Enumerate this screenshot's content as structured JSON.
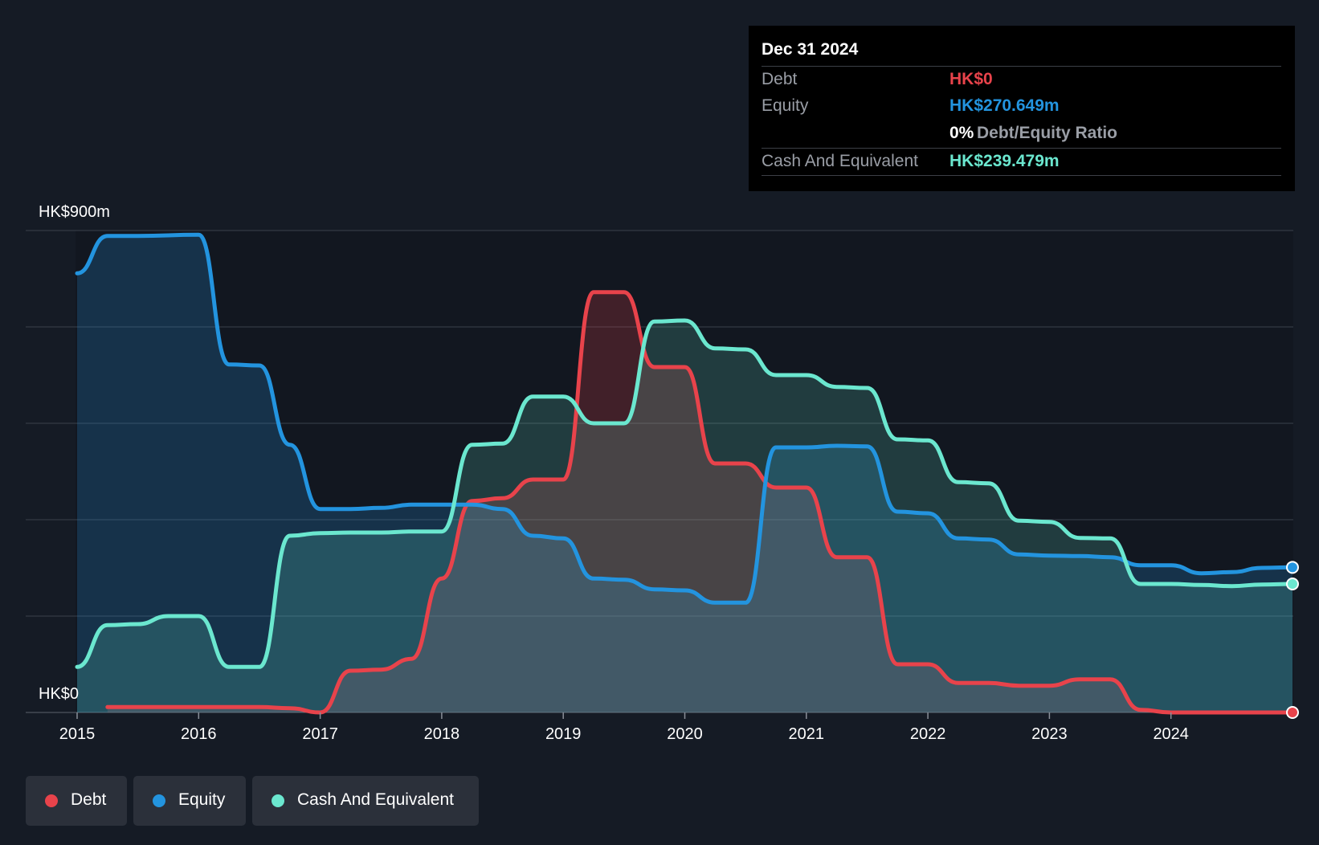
{
  "tooltip": {
    "date": "Dec 31 2024",
    "debt_label": "Debt",
    "debt_value": "HK$0",
    "equity_label": "Equity",
    "equity_value": "HK$270.649m",
    "ratio_value": "0%",
    "ratio_label": "Debt/Equity Ratio",
    "cash_label": "Cash And Equivalent",
    "cash_value": "HK$239.479m"
  },
  "legend": {
    "debt": "Debt",
    "equity": "Equity",
    "cash": "Cash And Equivalent"
  },
  "colors": {
    "background": "#151b25",
    "debt": "#e8434b",
    "equity": "#2394df",
    "cash": "#6be7cf",
    "grid": "#3a404b",
    "text": "#ffffff"
  },
  "chart_data": {
    "type": "area",
    "ylim": [
      0,
      900
    ],
    "y_unit": "HK$m",
    "y_tick_labels": {
      "top": "HK$900m",
      "bottom": "HK$0"
    },
    "gridlines": [
      0,
      180,
      360,
      540,
      720,
      900
    ],
    "x_range": [
      2015,
      2025
    ],
    "x_ticks": [
      "2015",
      "2016",
      "2017",
      "2018",
      "2019",
      "2020",
      "2021",
      "2022",
      "2023",
      "2024"
    ],
    "series": [
      {
        "name": "Debt",
        "x": [
          2015.25,
          2015.5,
          2016.0,
          2016.5,
          2016.75,
          2017.0,
          2017.25,
          2017.5,
          2017.75,
          2018.0,
          2018.25,
          2018.5,
          2018.75,
          2019.0,
          2019.25,
          2019.5,
          2019.75,
          2020.0,
          2020.25,
          2020.5,
          2020.75,
          2021.0,
          2021.25,
          2021.5,
          2021.75,
          2022.0,
          2022.25,
          2022.5,
          2022.75,
          2023.0,
          2023.25,
          2023.5,
          2023.75,
          2024.0,
          2024.5,
          2025.0
        ],
        "values": [
          10,
          10,
          10,
          10,
          8,
          0,
          78,
          80,
          100,
          250,
          395,
          400,
          435,
          435,
          785,
          785,
          645,
          645,
          465,
          465,
          420,
          420,
          290,
          290,
          90,
          90,
          55,
          55,
          50,
          50,
          62,
          62,
          5,
          0,
          0,
          0
        ]
      },
      {
        "name": "Equity",
        "x": [
          2015.0,
          2015.25,
          2015.5,
          2016.0,
          2016.25,
          2016.5,
          2016.75,
          2017.0,
          2017.25,
          2017.5,
          2017.75,
          2018.0,
          2018.25,
          2018.5,
          2018.75,
          2019.0,
          2019.25,
          2019.5,
          2019.75,
          2020.0,
          2020.25,
          2020.5,
          2020.75,
          2021.0,
          2021.25,
          2021.5,
          2021.75,
          2022.0,
          2022.25,
          2022.5,
          2022.75,
          2023.0,
          2023.25,
          2023.5,
          2023.75,
          2024.0,
          2024.25,
          2024.5,
          2024.75,
          2025.0
        ],
        "values": [
          820,
          890,
          890,
          892,
          650,
          648,
          500,
          380,
          380,
          382,
          388,
          388,
          388,
          380,
          330,
          325,
          250,
          248,
          230,
          228,
          205,
          205,
          495,
          495,
          498,
          497,
          375,
          372,
          325,
          323,
          295,
          293,
          292,
          290,
          275,
          275,
          260,
          262,
          270,
          271
        ]
      },
      {
        "name": "Cash And Equivalent",
        "x": [
          2015.0,
          2015.25,
          2015.5,
          2015.75,
          2016.0,
          2016.25,
          2016.5,
          2016.75,
          2017.0,
          2017.25,
          2017.5,
          2017.75,
          2018.0,
          2018.25,
          2018.5,
          2018.75,
          2019.0,
          2019.25,
          2019.5,
          2019.75,
          2020.0,
          2020.25,
          2020.5,
          2020.75,
          2021.0,
          2021.25,
          2021.5,
          2021.75,
          2022.0,
          2022.25,
          2022.5,
          2022.75,
          2023.0,
          2023.25,
          2023.5,
          2023.75,
          2024.0,
          2024.25,
          2024.5,
          2024.75,
          2025.0
        ],
        "values": [
          85,
          163,
          165,
          180,
          180,
          85,
          85,
          330,
          335,
          336,
          336,
          338,
          338,
          500,
          502,
          590,
          590,
          540,
          540,
          730,
          732,
          680,
          678,
          630,
          630,
          608,
          606,
          510,
          508,
          430,
          428,
          358,
          356,
          326,
          325,
          240,
          240,
          238,
          236,
          239,
          240
        ]
      }
    ]
  }
}
